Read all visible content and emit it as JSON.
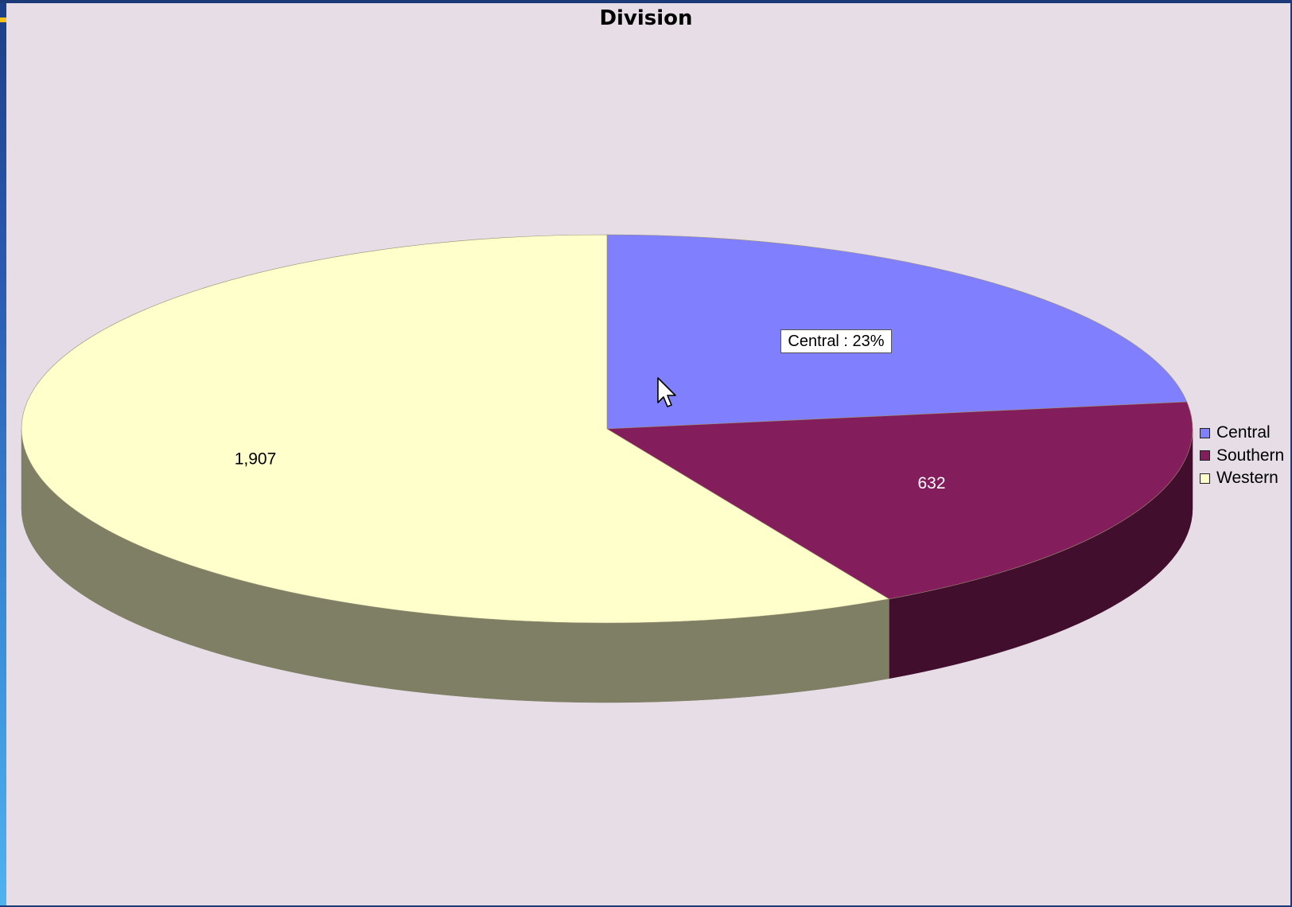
{
  "chart_data": {
    "type": "pie",
    "title": "Division",
    "slices": [
      {
        "label": "Central",
        "value": 749,
        "value_text": "749",
        "color": "#8080ff",
        "side_color": "#40407f",
        "label_color": "#000000"
      },
      {
        "label": "Southern",
        "value": 632,
        "value_text": "632",
        "color": "#841d5c",
        "side_color": "#420e2e",
        "label_color": "#ffffff"
      },
      {
        "label": "Western",
        "value": 1907,
        "value_text": "1,907",
        "color": "#ffffcc",
        "side_color": "#7f7f66",
        "label_color": "#000000"
      }
    ],
    "three_d": true,
    "legend_position": "right",
    "tooltip": "Central : 23%"
  },
  "colors": {
    "background": "#e6dde6",
    "frame": "#1c3a78"
  },
  "icons": {
    "cursor": "mouse-pointer-icon"
  }
}
